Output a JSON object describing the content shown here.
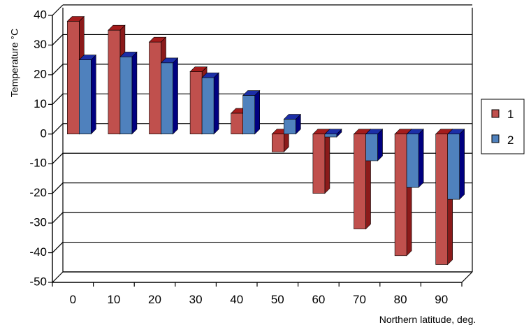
{
  "chart_data": {
    "type": "bar",
    "categories": [
      "0",
      "10",
      "20",
      "30",
      "40",
      "50",
      "60",
      "70",
      "80",
      "90"
    ],
    "series": [
      {
        "name": "1",
        "values": [
          38,
          35,
          31,
          21,
          7,
          -6,
          -20,
          -32,
          -41,
          -44
        ],
        "color": "#c0504d"
      },
      {
        "name": "2",
        "values": [
          25,
          26,
          24,
          19,
          13,
          5,
          -1,
          -9,
          -18,
          -22
        ],
        "color": "#4f81bd"
      }
    ],
    "ylabel": "Temperature °C",
    "xlabel": "Northern latitude, deg.",
    "ylim": [
      -50,
      40
    ],
    "yticks": [
      40,
      30,
      20,
      10,
      0,
      -10,
      -20,
      -30,
      -40,
      -50
    ],
    "grid": true,
    "legend_position": "right",
    "colors": {
      "series1_front": "#c0504d",
      "series1_side": "#8b1a1a",
      "series1_top": "#a51c1c",
      "series2_front": "#4f81bd",
      "series2_side": "#000080",
      "series2_top": "#1c2fa8"
    }
  }
}
